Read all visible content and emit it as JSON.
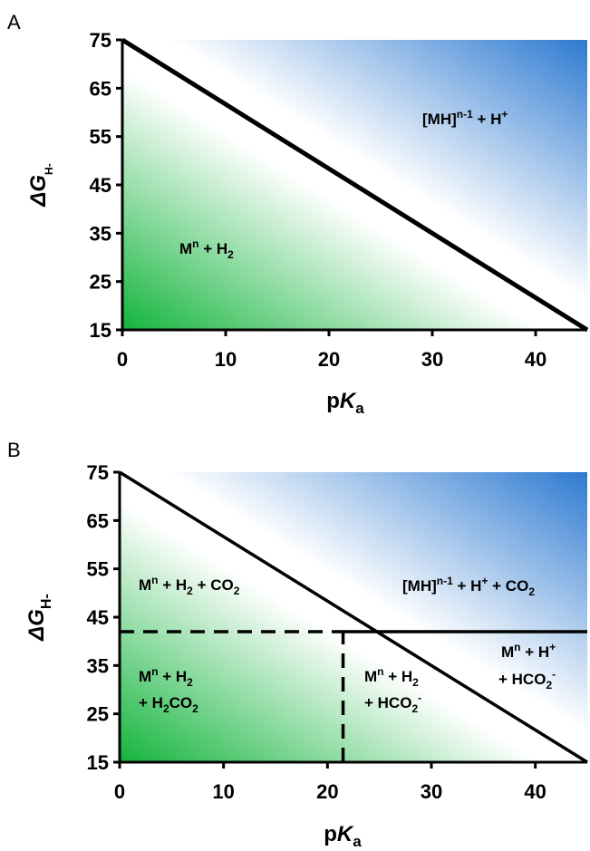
{
  "chart_data": [
    {
      "panel": "A",
      "type": "area",
      "xlabel": "pKa",
      "ylabel": "ΔGH-",
      "xlim": [
        0,
        45
      ],
      "ylim": [
        15,
        75
      ],
      "xticks": [
        0,
        10,
        20,
        30,
        40
      ],
      "yticks": [
        15,
        25,
        35,
        45,
        55,
        65,
        75
      ],
      "colors": {
        "green": "#13b43c",
        "blue": "#2e7ad1"
      },
      "lines": [
        {
          "style": "solid-thick",
          "points": [
            [
              0,
              75
            ],
            [
              45,
              15
            ]
          ]
        }
      ],
      "regions": [
        {
          "label": "[MH]n-1 + H+",
          "color": "blue"
        },
        {
          "label": "Mn + H2",
          "color": "green"
        }
      ]
    },
    {
      "panel": "B",
      "type": "area",
      "xlabel": "pKa",
      "ylabel": "ΔGH-",
      "xlim": [
        0,
        45
      ],
      "ylim": [
        15,
        75
      ],
      "xticks": [
        0,
        10,
        20,
        30,
        40
      ],
      "yticks": [
        15,
        25,
        35,
        45,
        55,
        65,
        75
      ],
      "colors": {
        "green": "#13b43c",
        "blue": "#2e7ad1"
      },
      "lines": [
        {
          "style": "solid",
          "points": [
            [
              0,
              75
            ],
            [
              45,
              15
            ]
          ]
        },
        {
          "style": "solid",
          "points": [
            [
              21.5,
              42
            ],
            [
              45,
              42
            ]
          ]
        },
        {
          "style": "dashed",
          "points": [
            [
              0,
              42
            ],
            [
              21.5,
              42
            ]
          ]
        },
        {
          "style": "dashed",
          "points": [
            [
              21.5,
              15
            ],
            [
              21.5,
              42
            ]
          ]
        }
      ],
      "regions": [
        {
          "label": "Mn + H2 + CO2",
          "color": "green"
        },
        {
          "label": "[MH]n-1 + H+ + CO2",
          "color": "blue"
        },
        {
          "label": "Mn + H+ + HCO2-",
          "color": "none"
        },
        {
          "label": "Mn + H2 + H2CO2",
          "color": "green"
        },
        {
          "label": "Mn + H2 + HCO2-",
          "color": "green"
        }
      ]
    }
  ],
  "panels": [
    {
      "letter": "A",
      "ylabel_main": "ΔG",
      "ylabel_sub": "H-",
      "xlabel_main": "p",
      "xlabel_italic": "K",
      "xlabel_sub": "a",
      "labels": {
        "mh_open": "[MH]",
        "mh_sup": "n-1",
        "plus_h": " + H",
        "plus_sup": "+",
        "m": "M",
        "m_sup": "n",
        "plus_h2": " + H",
        "h2_sub": "2"
      }
    },
    {
      "letter": "B",
      "ylabel_main": "ΔG",
      "ylabel_sub": "H-",
      "xlabel_main": "p",
      "xlabel_italic": "K",
      "xlabel_sub": "a",
      "labels": {
        "r1_m": "M",
        "r1_sup": "n",
        "r1_h": " + H",
        "r1_sub": "2",
        "r1_co": " + CO",
        "r1_sub2": "2",
        "r2_mh": "[MH]",
        "r2_sup": "n-1",
        "r2_h": " + H",
        "r2_sup2": "+",
        "r2_co": " + CO",
        "r2_sub": "2",
        "r3_l1_m": "M",
        "r3_l1_sup": "n",
        "r3_l1_h": " + H",
        "r3_l1_sup2": "+",
        "r3_l2_hco": "+ HCO",
        "r3_l2_sub": "2",
        "r3_l2_sup": "-",
        "r4_l1_m": "M",
        "r4_l1_sup": "n",
        "r4_l1_h": " + H",
        "r4_l1_sub": "2",
        "r4_l2_h": "+ H",
        "r4_l2_sub": "2",
        "r4_l2_co": "CO",
        "r4_l2_sub2": "2",
        "r5_l1_m": "M",
        "r5_l1_sup": "n",
        "r5_l1_h": " + H",
        "r5_l1_sub": "2",
        "r5_l2_hco": "+ HCO",
        "r5_l2_sub": "2",
        "r5_l2_sup": "-"
      }
    }
  ]
}
